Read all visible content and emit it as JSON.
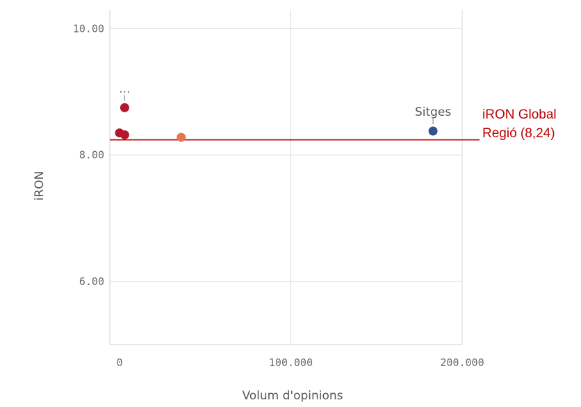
{
  "chart_data": {
    "type": "scatter",
    "xlabel": "Volum d'opinions",
    "ylabel": "iRON",
    "x_ticks": [
      "0",
      "100.000",
      "200.000"
    ],
    "y_ticks": [
      "6.00",
      "8.00",
      "10.00"
    ],
    "xlim": [
      0,
      200000
    ],
    "ylim": [
      5,
      10.3
    ],
    "grid": true,
    "points": [
      {
        "x": 3000,
        "y": 8.75,
        "color": "#b5172a",
        "label": "..."
      },
      {
        "x": 0,
        "y": 8.35,
        "color": "#b5172a",
        "label": ""
      },
      {
        "x": 3000,
        "y": 8.32,
        "color": "#b5172a",
        "label": ""
      },
      {
        "x": 36000,
        "y": 8.28,
        "color": "#e8734d",
        "label": ""
      },
      {
        "x": 183000,
        "y": 8.38,
        "color": "#34508f",
        "label": "Sitges"
      }
    ],
    "reference_line": {
      "y": 8.24,
      "color": "#c00000",
      "label_line1": "iRON Global",
      "label_line2": "Regió (8,24)"
    }
  }
}
